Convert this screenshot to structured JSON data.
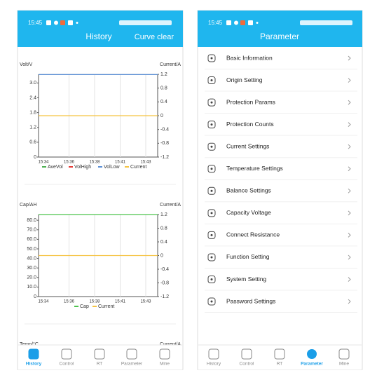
{
  "left_screen": {
    "status_time": "15:45",
    "header": {
      "title": "History",
      "action": "Curve clear"
    },
    "charts": [
      {
        "type": "line",
        "y_label": "Volt/V",
        "y2_label": "Current/A",
        "categories": [
          "15:34",
          "15:36",
          "15:38",
          "15:41",
          "15:43"
        ],
        "ylim": [
          0,
          3.35
        ],
        "yticks": [
          0,
          0.6,
          1.2,
          1.8,
          2.4,
          {
            "value": 3,
            "label": "3.0"
          }
        ],
        "y2lim": [
          -1.2,
          1.2
        ],
        "y2ticks": [
          1.2,
          0.8,
          0.4,
          0,
          -0.4,
          -0.8,
          -1.2
        ],
        "series": [
          {
            "name": "AveVol",
            "color": "#4caf50",
            "values": [
              null,
              null,
              null,
              null,
              null
            ]
          },
          {
            "name": "VolHigh",
            "color": "#e53935",
            "values": [
              null,
              null,
              null,
              null,
              null
            ]
          },
          {
            "name": "VolLow",
            "color": "#5b8fd6",
            "values": [
              3.34,
              3.34,
              3.34,
              3.34,
              3.34
            ]
          },
          {
            "name": "Current",
            "color": "#f5c342",
            "axis": "y2",
            "values": [
              0,
              0,
              0,
              0,
              0
            ]
          }
        ]
      },
      {
        "type": "line",
        "y_label": "Cap/AH",
        "y2_label": "Current/A",
        "categories": [
          "15:34",
          "15:36",
          "15:38",
          "15:41",
          "15:43"
        ],
        "ylim": [
          0,
          86
        ],
        "yticks": [
          0,
          {
            "value": 10,
            "label": "10.0"
          },
          {
            "value": 20,
            "label": "20.0"
          },
          {
            "value": 30,
            "label": "30.0"
          },
          {
            "value": 40,
            "label": "40.0"
          },
          {
            "value": 50,
            "label": "50.0"
          },
          {
            "value": 60,
            "label": "60.0"
          },
          {
            "value": 70,
            "label": "70.0"
          },
          {
            "value": 80,
            "label": "80.0"
          }
        ],
        "y2lim": [
          -1.2,
          1.2
        ],
        "y2ticks": [
          1.2,
          0.8,
          0.4,
          0,
          -0.4,
          -0.8,
          -1.2
        ],
        "series": [
          {
            "name": "Cap",
            "color": "#4cc34c",
            "values": [
              86,
              86,
              86,
              86,
              86
            ]
          },
          {
            "name": "Current",
            "color": "#f5c342",
            "axis": "y2",
            "values": [
              0,
              0,
              0,
              0,
              0
            ]
          }
        ]
      }
    ],
    "partial_chart": {
      "y_label": "Temp/°C",
      "y2_label": "Current/A"
    },
    "nav": {
      "items": [
        "History",
        "Control",
        "RT",
        "Parameter",
        "Mine"
      ],
      "active": 0
    }
  },
  "right_screen": {
    "status_time": "15:45",
    "header": {
      "title": "Parameter"
    },
    "menu": [
      "Basic Information",
      "Origin Setting",
      "Protection Params",
      "Protection Counts",
      "Current Settings",
      "Temperature Settings",
      "Balance Settings",
      "Capacity Voltage",
      "Connect Resistance",
      "Function Setting",
      "System Setting",
      "Password Settings"
    ],
    "nav": {
      "items": [
        "History",
        "Control",
        "RT",
        "Parameter",
        "Mine"
      ],
      "active": 3
    }
  }
}
